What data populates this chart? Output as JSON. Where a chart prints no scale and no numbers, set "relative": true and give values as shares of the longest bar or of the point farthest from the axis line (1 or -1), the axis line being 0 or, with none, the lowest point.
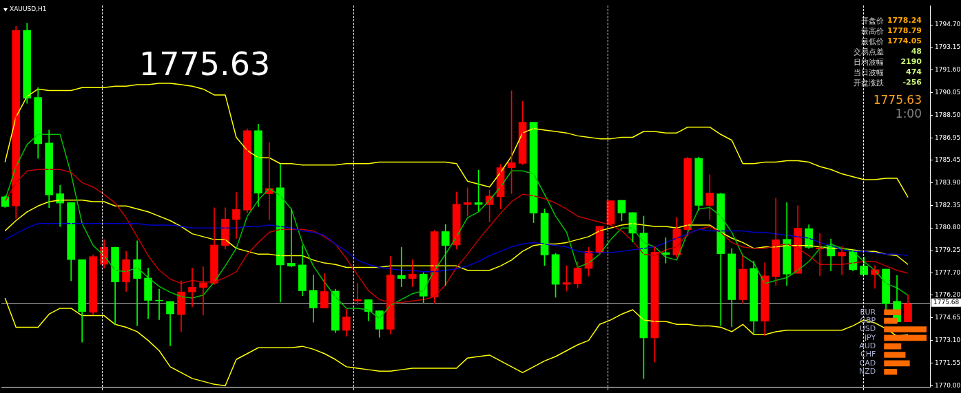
{
  "chart_data": [
    {
      "type": "candlestick",
      "title": "XAUUSD,H1",
      "categories": [
        null,
        null,
        null,
        null,
        null,
        null,
        null,
        null,
        null,
        null,
        null,
        null,
        null,
        null,
        null,
        null,
        null,
        null,
        null,
        null,
        null,
        null,
        null,
        null,
        null,
        null,
        null,
        null,
        null,
        null,
        null,
        null,
        null,
        null,
        null,
        null,
        null,
        null,
        null,
        null,
        null,
        null,
        null,
        null,
        null,
        null,
        null,
        null,
        null,
        null,
        null,
        null,
        null,
        null,
        null,
        null,
        null,
        null,
        null,
        null,
        null,
        null,
        null,
        null,
        null,
        null,
        null,
        null,
        null,
        null,
        null,
        null,
        null,
        null,
        null,
        null,
        null,
        null,
        null,
        null,
        null,
        null,
        null
      ],
      "ohlc": [
        [
          1782.93,
          1783.0,
          1782.2,
          1782.26
        ],
        [
          1782.31,
          1794.6,
          1781.45,
          1794.32
        ],
        [
          1794.32,
          1794.81,
          1789.32,
          1789.68
        ],
        [
          1789.73,
          1790.4,
          1785.56,
          1786.56
        ],
        [
          1786.61,
          1787.5,
          1782.18,
          1783.06
        ],
        [
          1783.14,
          1783.71,
          1780.89,
          1782.5
        ],
        [
          1782.53,
          1782.53,
          1777.18,
          1778.63
        ],
        [
          1778.63,
          1778.63,
          1772.98,
          1775.08
        ],
        [
          1775.03,
          1778.95,
          1774.84,
          1778.84
        ],
        [
          1778.31,
          1780.0,
          1778.06,
          1779.48
        ],
        [
          1779.48,
          1779.48,
          1774.19,
          1777.1
        ],
        [
          1777.1,
          1779.19,
          1776.45,
          1778.63
        ],
        [
          1778.63,
          1779.92,
          1774.11,
          1777.34
        ],
        [
          1777.37,
          1778.06,
          1774.6,
          1775.84
        ],
        [
          1775.85,
          1776.61,
          1774.52,
          1775.81
        ],
        [
          1775.77,
          1775.77,
          1772.74,
          1774.92
        ],
        [
          1774.87,
          1777.18,
          1773.71,
          1776.42
        ],
        [
          1776.42,
          1778.06,
          1775.4,
          1776.74
        ],
        [
          1776.73,
          1778.14,
          1774.84,
          1777.05
        ],
        [
          1777.02,
          1782.18,
          1776.94,
          1779.63
        ],
        [
          1779.6,
          1782.18,
          1779.35,
          1781.4
        ],
        [
          1781.37,
          1783.23,
          1780.08,
          1782.06
        ],
        [
          1782.02,
          1787.58,
          1781.85,
          1787.45
        ],
        [
          1787.45,
          1787.9,
          1782.26,
          1783.18
        ],
        [
          1783.14,
          1786.64,
          1781.37,
          1783.5
        ],
        [
          1783.55,
          1785.16,
          1775.73,
          1778.27
        ],
        [
          1778.39,
          1782.1,
          1778.14,
          1778.19
        ],
        [
          1778.27,
          1779.6,
          1776.16,
          1776.5
        ],
        [
          1776.53,
          1777.58,
          1774.35,
          1775.32
        ],
        [
          1775.32,
          1777.66,
          1775.32,
          1776.45
        ],
        [
          1776.48,
          1776.61,
          1773.63,
          1773.79
        ],
        [
          1773.79,
          1775.24,
          1773.39,
          1774.71
        ],
        [
          1775.81,
          1777.02,
          1775.56,
          1775.89
        ],
        [
          1775.89,
          1775.89,
          1774.44,
          1775.08
        ],
        [
          1775.13,
          1775.13,
          1773.31,
          1773.87
        ],
        [
          1773.87,
          1778.87,
          1773.55,
          1777.58
        ],
        [
          1777.55,
          1779.47,
          1776.77,
          1777.34
        ],
        [
          1777.34,
          1778.63,
          1776.77,
          1777.64
        ],
        [
          1777.64,
          1777.74,
          1775.65,
          1776.13
        ],
        [
          1776.08,
          1780.64,
          1775.65,
          1780.55
        ],
        [
          1780.55,
          1781.05,
          1776.85,
          1779.6
        ],
        [
          1779.63,
          1783.26,
          1779.35,
          1782.42
        ],
        [
          1782.4,
          1783.55,
          1781.61,
          1782.53
        ],
        [
          1782.53,
          1784.76,
          1781.94,
          1782.4
        ],
        [
          1782.39,
          1783.39,
          1781.21,
          1782.98
        ],
        [
          1782.94,
          1785.16,
          1782.1,
          1784.92
        ],
        [
          1784.92,
          1790.19,
          1783.15,
          1785.27
        ],
        [
          1785.21,
          1789.47,
          1785.13,
          1788.03
        ],
        [
          1788.03,
          1788.03,
          1781.16,
          1781.81
        ],
        [
          1781.81,
          1782.1,
          1778.23,
          1778.95
        ],
        [
          1778.98,
          1779.06,
          1776.05,
          1776.94
        ],
        [
          1776.94,
          1778.22,
          1776.48,
          1777.06
        ],
        [
          1776.97,
          1778.47,
          1776.69,
          1778.06
        ],
        [
          1778.03,
          1779.47,
          1777.5,
          1779.19
        ],
        [
          1779.11,
          1780.91,
          1778.95,
          1780.91
        ],
        [
          1781.05,
          1782.66,
          1780.97,
          1782.66
        ],
        [
          1782.69,
          1782.69,
          1781.29,
          1781.82
        ],
        [
          1781.85,
          1781.85,
          1779.84,
          1780.44
        ],
        [
          1780.45,
          1781.61,
          1770.48,
          1773.27
        ],
        [
          1773.27,
          1779.52,
          1771.61,
          1779.14
        ],
        [
          1779.11,
          1780.13,
          1778.39,
          1778.98
        ],
        [
          1778.95,
          1781.53,
          1778.79,
          1780.72
        ],
        [
          1780.68,
          1785.64,
          1780.24,
          1785.56
        ],
        [
          1785.56,
          1785.64,
          1782.02,
          1782.34
        ],
        [
          1782.34,
          1784.44,
          1781.37,
          1783.19
        ],
        [
          1783.14,
          1783.18,
          1774.11,
          1779.03
        ],
        [
          1779.03,
          1779.39,
          1774.03,
          1775.89
        ],
        [
          1775.89,
          1778.9,
          1775.65,
          1777.98
        ],
        [
          1778.03,
          1778.54,
          1773.52,
          1774.42
        ],
        [
          1774.42,
          1778.42,
          1773.44,
          1777.52
        ],
        [
          1777.47,
          1782.84,
          1776.87,
          1779.99
        ],
        [
          1780.02,
          1782.54,
          1776.84,
          1777.64
        ],
        [
          1777.69,
          1782.32,
          1777.69,
          1780.78
        ],
        [
          1780.75,
          1781.01,
          1779.39,
          1779.47
        ],
        [
          1779.36,
          1780.41,
          1777.52,
          1779.44
        ],
        [
          1779.59,
          1780.04,
          1777.86,
          1778.88
        ],
        [
          1778.88,
          1779.56,
          1777.6,
          1779.13
        ],
        [
          1779.19,
          1779.3,
          1777.86,
          1777.94
        ],
        [
          1778.2,
          1778.8,
          1777.6,
          1777.6
        ],
        [
          1777.6,
          1778.23,
          1776.67,
          1777.94
        ],
        [
          1777.98,
          1777.98,
          1775.14,
          1775.61
        ],
        [
          1775.78,
          1777.55,
          1774.29,
          1774.37
        ],
        [
          1774.37,
          1776.24,
          1774.37,
          1775.63
        ]
      ],
      "colors": [
        "#00ff00",
        "#ff0000",
        "#00ff00",
        "#00ff00",
        "#00ff00",
        "#00ff00",
        "#00ff00",
        "#00ff00",
        "#ff0000",
        "#ff0000",
        "#00ff00",
        "#ff0000",
        "#00ff00",
        "#00ff00",
        "#00ff00",
        "#00ff00",
        "#ff0000",
        "#ff0000",
        "#ff0000",
        "#ff0000",
        "#ff0000",
        "#ff0000",
        "#ff0000",
        "#00ff00",
        "#ff0000",
        "#00ff00",
        "#00ff00",
        "#00ff00",
        "#00ff00",
        "#ff0000",
        "#00ff00",
        "#ff0000",
        "#ff0000",
        "#00ff00",
        "#00ff00",
        "#ff0000",
        "#00ff00",
        "#ff0000",
        "#00ff00",
        "#ff0000",
        "#00ff00",
        "#ff0000",
        "#ff0000",
        "#00ff00",
        "#ff0000",
        "#ff0000",
        "#ff0000",
        "#ff0000",
        "#00ff00",
        "#00ff00",
        "#00ff00",
        "#ff0000",
        "#ff0000",
        "#ff0000",
        "#ff0000",
        "#ff0000",
        "#00ff00",
        "#00ff00",
        "#00ff00",
        "#ff0000",
        "#00ff00",
        "#ff0000",
        "#ff0000",
        "#00ff00",
        "#ff0000",
        "#00ff00",
        "#00ff00",
        "#ff0000",
        "#00ff00",
        "#ff0000",
        "#ff0000",
        "#00ff00",
        "#ff0000",
        "#00ff00",
        "#ff0000",
        "#00ff00",
        "#ff0000",
        "#00ff00",
        "#00ff00",
        "#ff0000",
        "#00ff00",
        "#00ff00",
        "#ff0000"
      ],
      "series": [
        {
          "type": "line",
          "color": "#0000c8",
          "values": [
            1780.0,
            1780.4,
            1780.8,
            1781.1,
            1781.1,
            1781.1,
            1781.1,
            1781.1,
            1781.1,
            1781.1,
            1781.1,
            1781.1,
            1781.1,
            1781.0,
            1781.0,
            1781.0,
            1780.9,
            1780.8,
            1780.8,
            1780.8,
            1780.8,
            1780.8,
            1780.9,
            1780.9,
            1781.0,
            1780.9,
            1780.8,
            1780.6,
            1780.5,
            1780.3,
            1779.7,
            1779.2,
            1778.6,
            1778.3,
            1778.1,
            1778.0,
            1777.9,
            1777.9,
            1777.8,
            1777.8,
            1777.9,
            1778.0,
            1778.2,
            1778.5,
            1778.9,
            1779.2,
            1779.5,
            1779.7,
            1779.8,
            1779.7,
            1779.6,
            1779.5,
            1779.2,
            1779.1,
            1779.1,
            1779.1,
            1779.2,
            1779.3,
            1779.4,
            1779.5,
            1779.8,
            1780.1,
            1780.4,
            1780.7,
            1780.6,
            1780.6,
            1780.6,
            1780.6,
            1780.5,
            1780.5,
            1780.4,
            1780.3,
            1780.2,
            1780.1,
            1779.8,
            1779.6,
            1779.3,
            1779.2,
            1779.2,
            1779.1,
            1779.0,
            1779.0,
            1778.9
          ]
        },
        {
          "type": "line",
          "color": "#c00000",
          "values": [
            1782.6,
            1783.9,
            1784.7,
            1784.8,
            1784.8,
            1784.8,
            1784.6,
            1783.9,
            1783.6,
            1783.1,
            1782.5,
            1781.5,
            1780.2,
            1778.9,
            1777.9,
            1777.3,
            1777.0,
            1777.2,
            1777.1,
            1777.1,
            1777.4,
            1777.8,
            1779.0,
            1779.8,
            1780.5,
            1780.7,
            1780.7,
            1780.7,
            1780.6,
            1780.2,
            1779.7,
            1778.7,
            1777.6,
            1776.5,
            1775.9,
            1775.7,
            1775.7,
            1775.8,
            1775.9,
            1776.1,
            1776.9,
            1778.1,
            1779.0,
            1780.0,
            1780.9,
            1781.8,
            1782.6,
            1783.1,
            1783.0,
            1782.8,
            1782.5,
            1782.1,
            1781.6,
            1781.4,
            1781.2,
            1781.0,
            1780.6,
            1779.9,
            1779.0,
            1778.9,
            1779.3,
            1779.5,
            1780.4,
            1780.7,
            1780.9,
            1780.5,
            1779.8,
            1779.5,
            1779.4,
            1779.4,
            1779.6,
            1779.7,
            1779.4,
            1778.9,
            1778.3,
            1778.3,
            1778.3,
            1778.4,
            1778.5,
            1778.5,
            1778.2,
            1777.9,
            1777.7
          ]
        },
        {
          "type": "line",
          "color": "#00c000",
          "values": [
            1782.7,
            1785.0,
            1786.5,
            1787.2,
            1787.2,
            1787.2,
            1784.5,
            1781.1,
            1779.6,
            1778.9,
            1777.9,
            1777.8,
            1778.1,
            1777.4,
            1776.8,
            1776.4,
            1776.1,
            1776.0,
            1776.2,
            1777.1,
            1778.2,
            1779.4,
            1781.6,
            1782.7,
            1783.5,
            1783.0,
            1782.1,
            1779.8,
            1778.2,
            1777.1,
            1776.1,
            1775.3,
            1775.3,
            1775.2,
            1774.6,
            1775.5,
            1775.9,
            1776.3,
            1776.5,
            1777.9,
            1779.0,
            1780.2,
            1781.5,
            1781.9,
            1782.7,
            1783.6,
            1784.7,
            1784.7,
            1784.5,
            1783.1,
            1781.6,
            1780.5,
            1778.1,
            1778.4,
            1779.0,
            1780.0,
            1780.8,
            1780.8,
            1779.8,
            1779.5,
            1778.8,
            1778.6,
            1780.5,
            1782.1,
            1782.2,
            1781.6,
            1780.5,
            1778.9,
            1778.4,
            1777.0,
            1777.2,
            1777.4,
            1777.9,
            1778.5,
            1779.4,
            1779.7,
            1779.4,
            1779.2,
            1778.5,
            1777.9,
            1777.0,
            1776.7,
            1776.2
          ]
        },
        {
          "type": "line",
          "color": "#ffff00",
          "values": [
            1785.3,
            1788.4,
            1789.8,
            1790.3,
            1790.2,
            1790.2,
            1790.2,
            1790.4,
            1790.4,
            1790.4,
            1790.5,
            1790.5,
            1790.6,
            1790.6,
            1790.7,
            1790.7,
            1790.6,
            1790.5,
            1790.3,
            1789.9,
            1789.9,
            1787.0,
            1786.1,
            1785.6,
            1785.6,
            1785.2,
            1785.2,
            1785.1,
            1785.1,
            1785.1,
            1785.1,
            1785.2,
            1785.2,
            1785.2,
            1785.3,
            1785.3,
            1785.3,
            1785.3,
            1785.3,
            1785.3,
            1785.3,
            1785.2,
            1784.0,
            1783.8,
            1783.6,
            1784.6,
            1785.7,
            1787.3,
            1787.6,
            1787.5,
            1787.4,
            1787.3,
            1787.1,
            1787.0,
            1786.9,
            1786.9,
            1787.0,
            1787.0,
            1787.4,
            1787.4,
            1787.3,
            1787.3,
            1787.7,
            1787.7,
            1787.7,
            1787.2,
            1786.8,
            1785.2,
            1785.2,
            1785.3,
            1785.3,
            1785.4,
            1785.4,
            1785.3,
            1785.0,
            1784.8,
            1784.5,
            1784.3,
            1784.1,
            1784.1,
            1784.2,
            1784.2,
            1782.9
          ]
        },
        {
          "type": "line",
          "color": "#ffff00",
          "values": [
            1780.6,
            1781.3,
            1781.9,
            1782.3,
            1782.6,
            1782.7,
            1782.7,
            1782.7,
            1782.6,
            1782.6,
            1782.3,
            1782.3,
            1782.1,
            1781.9,
            1781.6,
            1781.3,
            1780.9,
            1780.4,
            1780.2,
            1780.0,
            1780.0,
            1779.4,
            1779.2,
            1779.0,
            1779.0,
            1778.9,
            1778.9,
            1778.9,
            1778.6,
            1778.4,
            1778.3,
            1778.1,
            1778.1,
            1778.1,
            1778.1,
            1778.2,
            1778.2,
            1778.2,
            1778.2,
            1778.2,
            1778.2,
            1778.2,
            1777.9,
            1777.9,
            1777.9,
            1778.2,
            1778.6,
            1779.2,
            1779.6,
            1779.7,
            1779.7,
            1779.8,
            1780.0,
            1780.2,
            1780.6,
            1780.8,
            1781.0,
            1781.1,
            1781.0,
            1780.9,
            1780.9,
            1780.8,
            1781.0,
            1781.0,
            1781.0,
            1780.5,
            1780.1,
            1779.8,
            1779.4,
            1779.5,
            1779.5,
            1779.6,
            1779.6,
            1779.6,
            1779.5,
            1779.4,
            1779.4,
            1779.3,
            1779.2,
            1779.2,
            1779.0,
            1778.9,
            1778.3
          ]
        },
        {
          "type": "line",
          "color": "#ffff00",
          "values": [
            1776.0,
            1774.0,
            1774.0,
            1774.0,
            1774.9,
            1775.3,
            1775.3,
            1774.8,
            1774.8,
            1774.8,
            1774.2,
            1774.0,
            1773.7,
            1773.1,
            1772.4,
            1771.3,
            1770.9,
            1770.5,
            1770.3,
            1770.1,
            1770.0,
            1771.8,
            1772.2,
            1772.6,
            1772.6,
            1772.6,
            1772.6,
            1772.7,
            1772.5,
            1772.2,
            1771.8,
            1771.3,
            1771.2,
            1771.1,
            1771.0,
            1771.0,
            1771.1,
            1771.2,
            1771.2,
            1771.2,
            1771.2,
            1771.2,
            1771.9,
            1772.0,
            1772.1,
            1771.7,
            1771.3,
            1770.9,
            1771.3,
            1771.7,
            1772.0,
            1772.4,
            1772.8,
            1773.1,
            1774.2,
            1774.5,
            1774.9,
            1775.2,
            1774.5,
            1774.4,
            1774.4,
            1774.2,
            1774.2,
            1774.1,
            1774.1,
            1774.0,
            1773.7,
            1774.2,
            1773.5,
            1773.5,
            1773.7,
            1773.8,
            1773.8,
            1773.8,
            1773.8,
            1773.8,
            1773.8,
            1774.1,
            1774.5,
            1774.3,
            1773.9,
            1773.4,
            1773.5
          ]
        }
      ],
      "ylim": [
        1769.9,
        1796.0
      ],
      "yticks": [
        {
          "value": 1794.7,
          "label": "1794.70"
        },
        {
          "value": 1793.15,
          "label": "1793.15"
        },
        {
          "value": 1791.6,
          "label": "1791.60"
        },
        {
          "value": 1790.05,
          "label": "1790.05"
        },
        {
          "value": 1788.5,
          "label": "1788.50"
        },
        {
          "value": 1786.95,
          "label": "1786.95"
        },
        {
          "value": 1785.45,
          "label": "1785.45"
        },
        {
          "value": 1783.9,
          "label": "1783.90"
        },
        {
          "value": 1782.35,
          "label": "1782.35"
        },
        {
          "value": 1780.8,
          "label": "1780.80"
        },
        {
          "value": 1779.25,
          "label": "1779.25"
        },
        {
          "value": 1777.7,
          "label": "1777.70"
        },
        {
          "value": 1776.2,
          "label": "1776.20"
        },
        {
          "value": 1774.65,
          "label": "1774.65"
        },
        {
          "value": 1773.1,
          "label": "1773.10"
        },
        {
          "value": 1771.55,
          "label": "1771.55"
        },
        {
          "value": 1770.0,
          "label": "1770.00"
        }
      ],
      "tick_labels": "y",
      "ref_lines": [
        {
          "axis": "y",
          "value": 1775.68,
          "label": "1775.68",
          "color": "#c0c0c0",
          "line_style": "solid"
        }
      ],
      "annotations": [
        "1775.63",
        "开盘价",
        "1778.24",
        "最高价",
        "1778.79",
        "最低价",
        "1774.05",
        "交易点差",
        "48",
        "日均波幅",
        "2190",
        "当日波幅",
        "474",
        "开盘涨跌",
        "-256",
        "1775.63",
        "1:00"
      ]
    },
    {
      "type": "bar",
      "orientation": "horizontal",
      "relative": true,
      "categories": [
        "EUR",
        "GBP",
        "USD",
        "JPY",
        "AUD",
        "CHF",
        "CAD",
        "NZD"
      ],
      "values": [
        0.4,
        0.3,
        1,
        1,
        0.4,
        0.5,
        0.6,
        0.3
      ],
      "color": "#ff6a00"
    }
  ]
}
